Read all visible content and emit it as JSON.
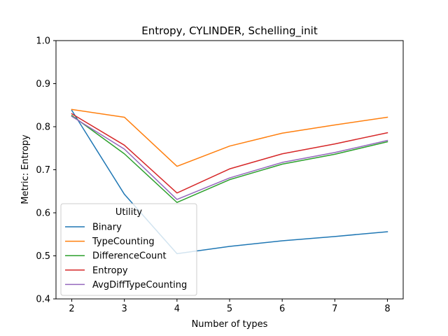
{
  "chart_data": {
    "type": "line",
    "title": "Entropy, CYLINDER, Schelling_init",
    "xlabel": "Number of types",
    "ylabel": "Metric: Entropy",
    "x": [
      2,
      3,
      4,
      5,
      6,
      7,
      8
    ],
    "xlim": [
      1.7,
      8.3
    ],
    "ylim": [
      0.4,
      1.0
    ],
    "xticks": [
      "2",
      "3",
      "4",
      "5",
      "6",
      "7",
      "8"
    ],
    "yticks": [
      "0.4",
      "0.5",
      "0.6",
      "0.7",
      "0.8",
      "0.9",
      "1.0"
    ],
    "grid": false,
    "legend": {
      "title": "Utility",
      "placement": "lower-left"
    },
    "series": [
      {
        "name": "Binary",
        "color": "#1f77b4",
        "values": [
          0.838,
          0.643,
          0.505,
          0.522,
          0.535,
          0.545,
          0.556
        ]
      },
      {
        "name": "TypeCounting",
        "color": "#ff7f0e",
        "values": [
          0.84,
          0.822,
          0.708,
          0.755,
          0.785,
          0.804,
          0.822
        ]
      },
      {
        "name": "DifferenceCount",
        "color": "#2ca02c",
        "values": [
          0.826,
          0.737,
          0.624,
          0.677,
          0.713,
          0.736,
          0.765
        ]
      },
      {
        "name": "Entropy",
        "color": "#d62728",
        "values": [
          0.83,
          0.757,
          0.646,
          0.702,
          0.737,
          0.76,
          0.786
        ]
      },
      {
        "name": "AvgDiffTypeCounting",
        "color": "#9467bd",
        "values": [
          0.824,
          0.748,
          0.631,
          0.681,
          0.717,
          0.74,
          0.768
        ]
      }
    ]
  }
}
